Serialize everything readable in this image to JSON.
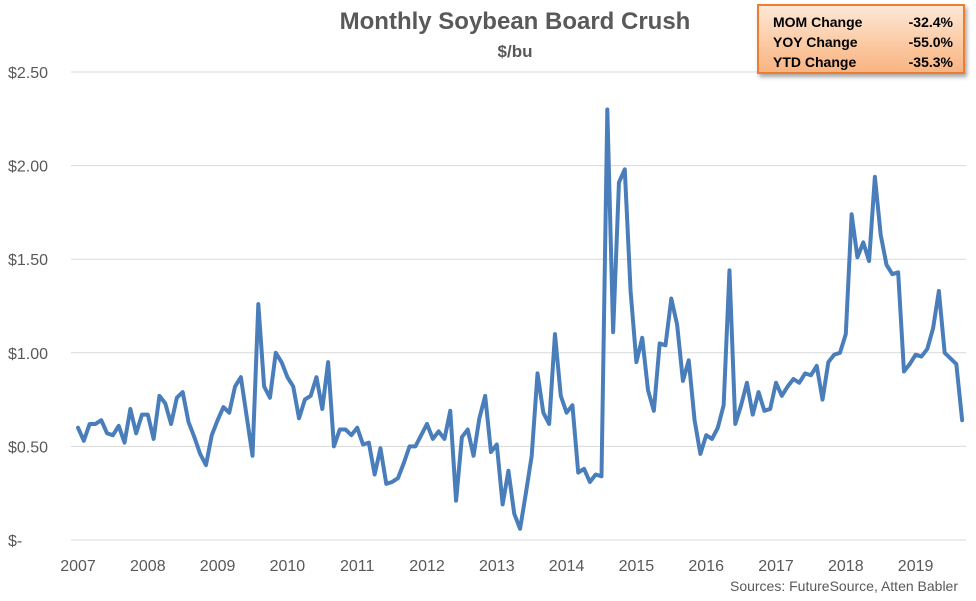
{
  "chart_data": {
    "type": "line",
    "title": "Monthly Soybean Board Crush",
    "subtitle": "$/bu",
    "xlabel": "",
    "ylabel": "",
    "ylim": [
      0,
      2.5
    ],
    "y_ticks": [
      0,
      0.5,
      1.0,
      1.5,
      2.0,
      2.5
    ],
    "y_tick_labels": [
      "$-",
      "$0.50",
      "$1.00",
      "$1.50",
      "$2.00",
      "$2.50"
    ],
    "x_tick_labels": [
      "2007",
      "2008",
      "2009",
      "2010",
      "2011",
      "2012",
      "2013",
      "2014",
      "2015",
      "2016",
      "2017",
      "2018",
      "2019"
    ],
    "x_start": "2007-01",
    "grid": "horizontal",
    "line_color": "#4a7ebb",
    "series": [
      {
        "values": [
          0.6,
          0.53,
          0.62,
          0.62,
          0.64,
          0.57,
          0.56,
          0.61,
          0.52,
          0.7,
          0.57,
          0.67,
          0.67,
          0.54,
          0.77,
          0.73,
          0.62,
          0.76,
          0.79,
          0.63,
          0.55,
          0.46,
          0.4,
          0.56,
          0.64,
          0.71,
          0.68,
          0.82,
          0.87,
          0.66,
          0.45,
          1.26,
          0.82,
          0.76,
          1.0,
          0.95,
          0.87,
          0.82,
          0.65,
          0.75,
          0.77,
          0.87,
          0.7,
          0.95,
          0.5,
          0.59,
          0.59,
          0.56,
          0.6,
          0.51,
          0.52,
          0.35,
          0.49,
          0.3,
          0.31,
          0.33,
          0.41,
          0.5,
          0.5,
          0.56,
          0.62,
          0.54,
          0.58,
          0.54,
          0.69,
          0.21,
          0.55,
          0.59,
          0.45,
          0.65,
          0.77,
          0.47,
          0.51,
          0.19,
          0.37,
          0.14,
          0.06,
          0.25,
          0.45,
          0.89,
          0.68,
          0.62,
          1.1,
          0.77,
          0.68,
          0.72,
          0.36,
          0.38,
          0.31,
          0.35,
          0.34,
          2.3,
          1.11,
          1.91,
          1.98,
          1.33,
          0.95,
          1.08,
          0.8,
          0.69,
          1.05,
          1.04,
          1.29,
          1.15,
          0.85,
          0.96,
          0.64,
          0.46,
          0.56,
          0.54,
          0.6,
          0.72,
          1.44,
          0.62,
          0.72,
          0.84,
          0.67,
          0.79,
          0.69,
          0.7,
          0.84,
          0.77,
          0.82,
          0.86,
          0.84,
          0.89,
          0.88,
          0.93,
          0.75,
          0.95,
          0.99,
          1.0,
          1.1,
          1.74,
          1.51,
          1.59,
          1.49,
          1.94,
          1.63,
          1.47,
          1.42,
          1.43,
          0.9,
          0.94,
          0.99,
          0.98,
          1.02,
          1.13,
          1.33,
          1.0,
          0.97,
          0.94,
          0.64
        ]
      }
    ]
  },
  "stats": {
    "rows": [
      {
        "label": "MOM Change",
        "value": "-32.4%"
      },
      {
        "label": "YOY Change",
        "value": "-55.0%"
      },
      {
        "label": "YTD Change",
        "value": "-35.3%"
      }
    ]
  },
  "source": "Sources: FutureSource, Atten Babler"
}
